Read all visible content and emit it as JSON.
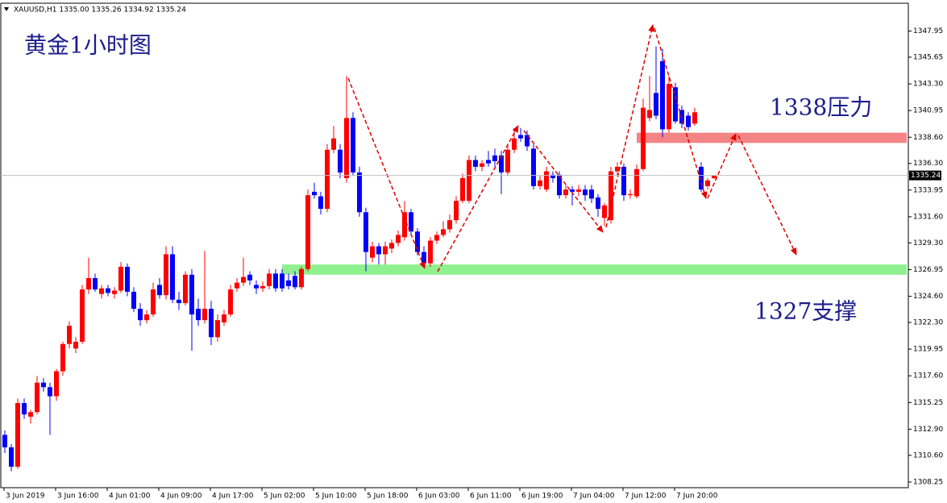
{
  "chart_data": {
    "type": "candlestick",
    "header": "XAUUSD,H1  1335.00 1335.26 1334.92 1335.24",
    "annotations": [
      "黄金1小时图",
      "1338压力",
      "1327支撑"
    ],
    "up_color": "#ff0000",
    "down_color": "#0000ff",
    "last_price": {
      "value": 1335.24,
      "label": "1335.24"
    },
    "bands": [
      {
        "low": 1338.1,
        "high": 1339.0,
        "color": "#f48484"
      },
      {
        "low": 1326.5,
        "high": 1327.4,
        "color": "#8ff08f"
      }
    ],
    "ylim": [
      1307.75,
      1350.4
    ],
    "yticks": [
      1347.95,
      1345.65,
      {
        "value": 1343.3,
        "label": "1343.30"
      },
      1340.95,
      {
        "value": 1338.6,
        "label": "1338.60"
      },
      {
        "value": 1336.3,
        "label": "1336.30"
      },
      1333.95,
      {
        "value": 1331.6,
        "label": "1331.60"
      },
      {
        "value": 1329.3,
        "label": "1329.30"
      },
      1326.95,
      {
        "value": 1324.6,
        "label": "1324.60"
      },
      {
        "value": 1322.3,
        "label": "1322.30"
      },
      1319.95,
      {
        "value": 1317.6,
        "label": "1317.60"
      },
      1315.25,
      {
        "value": 1312.9,
        "label": "1312.90"
      },
      {
        "value": 1310.6,
        "label": "1310.60"
      },
      1308.25
    ],
    "categories": [
      "3 Jun 2019",
      null,
      null,
      null,
      null,
      null,
      null,
      null,
      "3 Jun 16:00",
      null,
      null,
      null,
      null,
      null,
      null,
      null,
      "4 Jun 01:00",
      null,
      null,
      null,
      null,
      null,
      null,
      null,
      "4 Jun 09:00",
      null,
      null,
      null,
      null,
      null,
      null,
      null,
      "4 Jun 17:00",
      null,
      null,
      null,
      null,
      null,
      null,
      null,
      "5 Jun 02:00",
      null,
      null,
      null,
      null,
      null,
      null,
      null,
      "5 Jun 10:00",
      null,
      null,
      null,
      null,
      null,
      null,
      null,
      "5 Jun 18:00",
      null,
      null,
      null,
      null,
      null,
      null,
      null,
      "6 Jun 03:00",
      null,
      null,
      null,
      null,
      null,
      null,
      null,
      "6 Jun 11:00",
      null,
      null,
      null,
      null,
      null,
      null,
      null,
      "6 Jun 19:00",
      null,
      null,
      null,
      null,
      null,
      null,
      null,
      "7 Jun 04:00",
      null,
      null,
      null,
      null,
      null,
      null,
      null,
      "7 Jun 12:00",
      null,
      null,
      null,
      null,
      null,
      null,
      null,
      "7 Jun 20:00",
      null,
      null,
      null,
      null,
      null,
      null
    ],
    "open": [
      1312.4,
      1311.3,
      1309.6,
      1315.2,
      1314.0,
      1314.4,
      1317.0,
      1316.6,
      1315.8,
      1318.0,
      1320.4,
      1320.0,
      1320.6,
      1325.2,
      1326.2,
      1324.8,
      1325.3,
      1324.8,
      1325.1,
      1327.2,
      1325.0,
      1323.5,
      1322.5,
      1323.0,
      1325.6,
      1324.7,
      1328.3,
      1324.3,
      1324.0,
      1326.5,
      1323.5,
      1322.5,
      1323.5,
      1321.0,
      1322.3,
      1323.0,
      1325.3,
      1325.8,
      1326.5,
      1325.6,
      1325.3,
      1325.5,
      1326.6,
      1326.6,
      1326.0,
      1326.4,
      1325.4,
      1327.0,
      1333.8,
      1333.4,
      1332.3,
      1337.5,
      1337.5,
      1335.0,
      1340.3,
      1335.5,
      1332.0,
      1328.0,
      1329.0,
      1328.3,
      1328.8,
      1329.3,
      1329.8,
      1332.0,
      1330.3,
      1328.5,
      1327.5,
      1329.5,
      1330.0,
      1330.5,
      1331.3,
      1333.0,
      1333.0,
      1336.6,
      1336.0,
      1336.6,
      1337.0,
      1337.0,
      1335.5,
      1337.5,
      1338.8,
      1338.8,
      1337.6,
      1334.3,
      1334.0,
      1335.3,
      1335.3,
      1333.5,
      1334.0,
      1333.8,
      1334.0,
      1334.0,
      1333.3,
      1331.5,
      1331.3,
      1335.6,
      1336.0,
      1333.5,
      1333.4,
      1335.8,
      1340.3,
      1342.5,
      1345.3,
      1339.3,
      1343.0,
      1341.0,
      1340.5,
      1339.8,
      1336.0,
      1334.3,
      1335.0
    ],
    "high": [
      1312.8,
      1311.6,
      1315.6,
      1315.6,
      1314.6,
      1317.6,
      1317.4,
      1317.0,
      1318.2,
      1320.6,
      1322.4,
      1321.0,
      1325.6,
      1328.0,
      1326.6,
      1325.6,
      1325.6,
      1325.4,
      1327.6,
      1327.5,
      1325.4,
      1324.0,
      1323.4,
      1325.8,
      1326.2,
      1329.0,
      1329.0,
      1325.0,
      1326.8,
      1327.0,
      1324.4,
      1328.6,
      1324.2,
      1323.0,
      1323.4,
      1325.6,
      1326.2,
      1328.0,
      1326.8,
      1326.0,
      1325.9,
      1327.0,
      1327.0,
      1327.0,
      1326.6,
      1326.8,
      1327.2,
      1334.0,
      1334.6,
      1333.8,
      1338.0,
      1339.6,
      1338.0,
      1344.0,
      1340.8,
      1336.0,
      1332.4,
      1329.4,
      1329.3,
      1329.4,
      1329.6,
      1330.4,
      1333.0,
      1332.3,
      1330.6,
      1329.0,
      1329.8,
      1330.3,
      1331.2,
      1331.8,
      1333.4,
      1335.4,
      1337.0,
      1337.0,
      1336.6,
      1337.4,
      1337.6,
      1337.4,
      1338.0,
      1339.4,
      1339.4,
      1339.2,
      1338.0,
      1335.2,
      1336.0,
      1335.6,
      1335.6,
      1334.4,
      1334.3,
      1334.4,
      1334.4,
      1334.4,
      1333.6,
      1332.8,
      1336.0,
      1336.4,
      1336.3,
      1334.0,
      1336.2,
      1342.0,
      1344.0,
      1346.6,
      1346.4,
      1344.0,
      1343.4,
      1341.4,
      1340.8,
      1341.2,
      1336.4,
      1335.0,
      1335.26
    ],
    "low": [
      1310.8,
      1309.2,
      1309.4,
      1313.8,
      1313.4,
      1314.2,
      1316.2,
      1312.4,
      1315.4,
      1317.6,
      1320.0,
      1319.6,
      1320.4,
      1324.8,
      1325.0,
      1324.4,
      1324.6,
      1324.4,
      1324.9,
      1324.6,
      1323.2,
      1322.0,
      1322.2,
      1322.8,
      1324.4,
      1324.3,
      1324.0,
      1323.4,
      1323.8,
      1319.8,
      1322.0,
      1322.2,
      1320.3,
      1320.6,
      1322.0,
      1322.8,
      1325.0,
      1325.5,
      1325.6,
      1324.8,
      1325.0,
      1325.2,
      1325.0,
      1325.0,
      1325.2,
      1325.2,
      1325.2,
      1326.8,
      1333.2,
      1331.8,
      1332.0,
      1337.2,
      1335.0,
      1334.6,
      1335.2,
      1331.6,
      1326.8,
      1327.6,
      1327.4,
      1327.4,
      1328.4,
      1329.0,
      1329.5,
      1330.0,
      1328.2,
      1327.2,
      1327.2,
      1329.2,
      1329.8,
      1330.2,
      1331.0,
      1332.8,
      1332.8,
      1335.6,
      1335.6,
      1336.0,
      1336.0,
      1333.6,
      1335.2,
      1337.2,
      1338.2,
      1337.4,
      1334.0,
      1334.0,
      1333.8,
      1334.6,
      1333.2,
      1333.2,
      1332.6,
      1333.4,
      1333.0,
      1332.8,
      1331.6,
      1330.8,
      1331.0,
      1335.2,
      1333.0,
      1333.2,
      1333.2,
      1335.6,
      1340.0,
      1340.2,
      1338.6,
      1339.0,
      1339.8,
      1339.4,
      1339.2,
      1339.6,
      1333.8,
      1334.0,
      1334.92
    ],
    "close": [
      1311.3,
      1309.6,
      1315.2,
      1314.2,
      1314.4,
      1317.0,
      1316.6,
      1315.8,
      1318.0,
      1320.4,
      1322.0,
      1320.6,
      1325.2,
      1326.2,
      1325.2,
      1325.3,
      1324.9,
      1325.1,
      1327.2,
      1325.0,
      1323.5,
      1322.5,
      1323.0,
      1325.2,
      1324.7,
      1328.3,
      1324.3,
      1324.0,
      1326.5,
      1323.0,
      1322.5,
      1323.5,
      1321.0,
      1322.5,
      1323.0,
      1325.2,
      1325.8,
      1326.3,
      1326.0,
      1325.3,
      1325.5,
      1326.6,
      1325.3,
      1325.3,
      1325.5,
      1325.4,
      1327.0,
      1333.5,
      1333.5,
      1332.3,
      1337.5,
      1338.5,
      1335.5,
      1340.3,
      1335.5,
      1332.0,
      1328.5,
      1329.0,
      1328.3,
      1329.0,
      1329.3,
      1330.0,
      1332.0,
      1330.3,
      1328.5,
      1327.5,
      1329.5,
      1330.0,
      1330.5,
      1331.3,
      1333.0,
      1335.0,
      1336.6,
      1336.0,
      1336.3,
      1336.3,
      1336.5,
      1335.5,
      1337.5,
      1338.5,
      1338.5,
      1337.8,
      1334.3,
      1334.8,
      1335.6,
      1335.0,
      1333.5,
      1334.0,
      1333.8,
      1334.0,
      1333.5,
      1333.2,
      1332.3,
      1332.6,
      1335.6,
      1336.0,
      1333.5,
      1333.6,
      1335.8,
      1341.2,
      1341.0,
      1340.5,
      1339.3,
      1343.3,
      1340.0,
      1339.8,
      1339.5,
      1340.8,
      1334.0,
      1334.8,
      1335.24
    ]
  }
}
